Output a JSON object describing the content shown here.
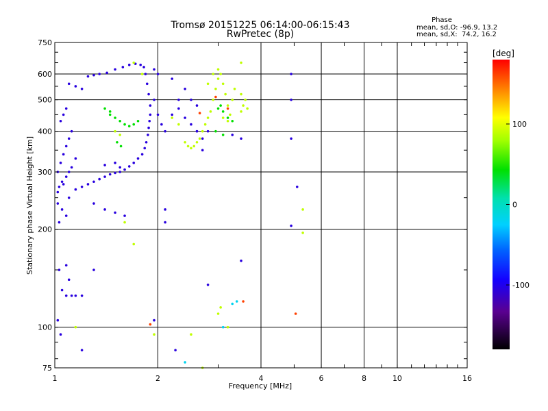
{
  "chart_data": {
    "type": "scatter",
    "title": "Tromsø 20151225 06:14:00-06:15:43",
    "subtitle": "RwPretec (8p)",
    "xlabel": "Frequency [MHz]",
    "ylabel": "Stationary phase Virtual Height [km]",
    "x_scale": "log",
    "y_scale": "log",
    "xlim": [
      1,
      16
    ],
    "ylim": [
      75,
      750
    ],
    "x_ticks": [
      1,
      2,
      4,
      6,
      8,
      10,
      16
    ],
    "y_ticks": [
      75,
      100,
      200,
      300,
      400,
      500,
      600,
      750
    ],
    "grid_x": [
      2,
      4,
      6,
      8,
      10
    ],
    "grid_y": [
      100,
      200,
      300,
      400,
      500,
      600
    ],
    "grid": true,
    "stats": {
      "heading": "Phase",
      "line_o": "mean, sd,O: -96.9, 13.2",
      "line_x": "mean, sd,X:  74.2, 16.2"
    },
    "colorbar": {
      "label": "[deg]",
      "range": [
        -180,
        180
      ],
      "ticks": [
        100,
        0,
        -100
      ]
    },
    "series": [
      {
        "color_deg": -110,
        "points": [
          [
            1.02,
            260
          ],
          [
            1.03,
            270
          ],
          [
            1.05,
            280
          ],
          [
            1.06,
            275
          ],
          [
            1.08,
            290
          ],
          [
            1.1,
            300
          ],
          [
            1.12,
            310
          ],
          [
            1.15,
            330
          ],
          [
            1.02,
            300
          ],
          [
            1.04,
            320
          ],
          [
            1.06,
            340
          ],
          [
            1.08,
            360
          ],
          [
            1.1,
            380
          ],
          [
            1.12,
            400
          ],
          [
            1.04,
            430
          ],
          [
            1.06,
            450
          ],
          [
            1.08,
            470
          ],
          [
            1.02,
            240
          ],
          [
            1.05,
            230
          ],
          [
            1.08,
            220
          ],
          [
            1.03,
            210
          ],
          [
            1.1,
            250
          ],
          [
            1.15,
            265
          ],
          [
            1.2,
            270
          ],
          [
            1.25,
            275
          ],
          [
            1.3,
            280
          ],
          [
            1.35,
            285
          ],
          [
            1.4,
            290
          ],
          [
            1.45,
            295
          ],
          [
            1.5,
            298
          ],
          [
            1.55,
            300
          ],
          [
            1.6,
            305
          ],
          [
            1.65,
            312
          ],
          [
            1.7,
            320
          ],
          [
            1.75,
            330
          ],
          [
            1.8,
            340
          ],
          [
            1.83,
            355
          ],
          [
            1.85,
            370
          ],
          [
            1.87,
            390
          ],
          [
            1.88,
            410
          ],
          [
            1.89,
            430
          ],
          [
            1.9,
            450
          ],
          [
            1.9,
            480
          ],
          [
            1.88,
            520
          ],
          [
            1.86,
            560
          ],
          [
            1.84,
            600
          ],
          [
            1.82,
            630
          ],
          [
            1.78,
            640
          ],
          [
            1.72,
            645
          ],
          [
            1.65,
            640
          ],
          [
            1.58,
            630
          ],
          [
            1.5,
            620
          ],
          [
            1.42,
            605
          ],
          [
            1.35,
            600
          ],
          [
            1.3,
            595
          ],
          [
            1.25,
            590
          ],
          [
            1.95,
            620
          ],
          [
            2.0,
            600
          ],
          [
            1.95,
            500
          ],
          [
            2.0,
            450
          ],
          [
            2.05,
            420
          ],
          [
            2.1,
            400
          ],
          [
            2.2,
            450
          ],
          [
            2.3,
            470
          ],
          [
            2.4,
            440
          ],
          [
            2.5,
            420
          ],
          [
            2.6,
            400
          ],
          [
            2.7,
            380
          ],
          [
            2.8,
            400
          ],
          [
            2.5,
            500
          ],
          [
            2.6,
            480
          ],
          [
            1.2,
            540
          ],
          [
            1.15,
            550
          ],
          [
            1.1,
            560
          ],
          [
            1.5,
            320
          ],
          [
            1.55,
            310
          ],
          [
            1.4,
            315
          ],
          [
            1.3,
            240
          ],
          [
            1.4,
            230
          ],
          [
            1.5,
            225
          ],
          [
            1.6,
            220
          ],
          [
            1.1,
            140
          ],
          [
            1.05,
            130
          ],
          [
            1.08,
            125
          ],
          [
            1.12,
            125
          ],
          [
            1.15,
            125
          ],
          [
            1.2,
            125
          ],
          [
            1.03,
            150
          ],
          [
            1.08,
            155
          ],
          [
            1.02,
            105
          ],
          [
            1.04,
            95
          ],
          [
            1.3,
            150
          ],
          [
            2.1,
            210
          ],
          [
            2.1,
            230
          ],
          [
            2.6,
            400
          ],
          [
            2.7,
            350
          ],
          [
            4.9,
            600
          ],
          [
            4.9,
            500
          ],
          [
            4.9,
            380
          ],
          [
            5.1,
            270
          ],
          [
            4.9,
            205
          ],
          [
            3.5,
            160
          ],
          [
            2.8,
            135
          ],
          [
            1.95,
            105
          ],
          [
            2.25,
            85
          ],
          [
            1.2,
            85
          ],
          [
            2.3,
            500
          ],
          [
            2.4,
            540
          ],
          [
            2.2,
            580
          ],
          [
            3.3,
            390
          ],
          [
            3.5,
            380
          ]
        ]
      },
      {
        "color_deg": 80,
        "points": [
          [
            2.4,
            370
          ],
          [
            2.45,
            360
          ],
          [
            2.5,
            355
          ],
          [
            2.55,
            360
          ],
          [
            2.6,
            370
          ],
          [
            2.65,
            380
          ],
          [
            2.7,
            400
          ],
          [
            2.75,
            420
          ],
          [
            2.8,
            440
          ],
          [
            2.85,
            460
          ],
          [
            2.9,
            500
          ],
          [
            2.95,
            540
          ],
          [
            3.0,
            580
          ],
          [
            3.05,
            600
          ],
          [
            3.1,
            560
          ],
          [
            3.15,
            520
          ],
          [
            3.2,
            480
          ],
          [
            3.25,
            450
          ],
          [
            3.3,
            500
          ],
          [
            3.35,
            540
          ],
          [
            3.0,
            620
          ],
          [
            2.9,
            600
          ],
          [
            2.8,
            560
          ],
          [
            3.5,
            460
          ],
          [
            3.55,
            480
          ],
          [
            3.6,
            500
          ],
          [
            3.65,
            470
          ],
          [
            3.5,
            520
          ],
          [
            3.1,
            440
          ],
          [
            3.2,
            430
          ],
          [
            2.3,
            420
          ],
          [
            2.2,
            440
          ],
          [
            1.5,
            400
          ],
          [
            1.55,
            390
          ],
          [
            1.6,
            210
          ],
          [
            1.7,
            650
          ],
          [
            1.8,
            600
          ],
          [
            3.5,
            650
          ],
          [
            3.0,
            110
          ],
          [
            3.05,
            115
          ],
          [
            2.5,
            95
          ],
          [
            1.95,
            95
          ],
          [
            5.3,
            230
          ],
          [
            5.3,
            195
          ],
          [
            3.2,
            100
          ],
          [
            1.15,
            100
          ],
          [
            1.7,
            180
          ],
          [
            2.7,
            75
          ]
        ]
      },
      {
        "color_deg": 30,
        "points": [
          [
            1.45,
            450
          ],
          [
            1.5,
            440
          ],
          [
            1.55,
            430
          ],
          [
            1.6,
            420
          ],
          [
            1.65,
            415
          ],
          [
            1.7,
            420
          ],
          [
            1.75,
            430
          ],
          [
            1.4,
            470
          ],
          [
            1.45,
            460
          ],
          [
            3.0,
            470
          ],
          [
            3.05,
            480
          ],
          [
            3.1,
            460
          ],
          [
            3.2,
            440
          ],
          [
            3.3,
            430
          ],
          [
            2.95,
            400
          ],
          [
            1.52,
            370
          ],
          [
            1.56,
            360
          ],
          [
            3.1,
            390
          ]
        ]
      },
      {
        "color_deg": -20,
        "points": [
          [
            3.4,
            120
          ],
          [
            3.3,
            118
          ],
          [
            2.4,
            78
          ],
          [
            3.1,
            100
          ]
        ]
      },
      {
        "color_deg": 160,
        "points": [
          [
            2.95,
            510
          ],
          [
            3.2,
            470
          ],
          [
            3.55,
            120
          ],
          [
            5.05,
            110
          ],
          [
            1.9,
            102
          ],
          [
            2.65,
            455
          ]
        ]
      }
    ]
  }
}
